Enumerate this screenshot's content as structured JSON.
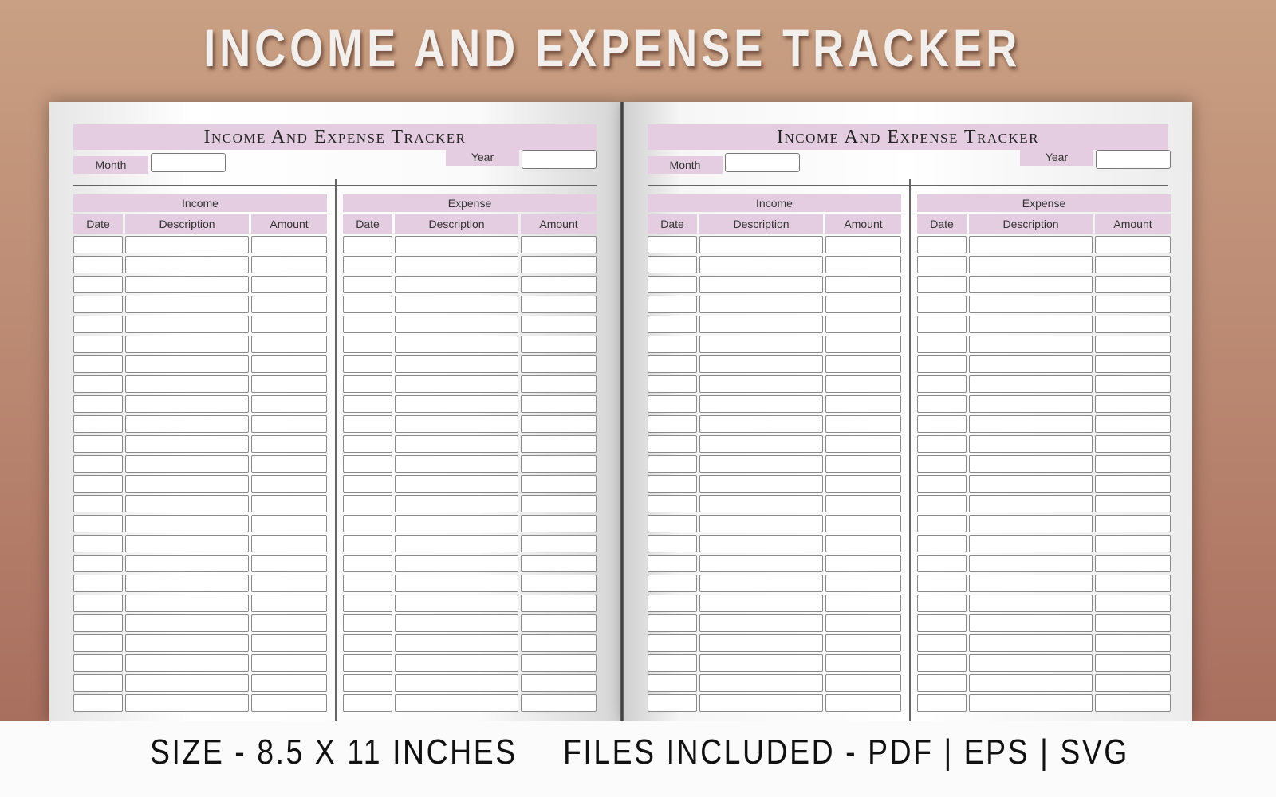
{
  "title": "INCOME AND EXPENSE TRACKER",
  "page": {
    "header": "Income And Expense Tracker",
    "month_label": "Month",
    "year_label": "Year",
    "sections": [
      {
        "title": "Income",
        "columns": [
          "Date",
          "Description",
          "Amount"
        ]
      },
      {
        "title": "Expense",
        "columns": [
          "Date",
          "Description",
          "Amount"
        ]
      }
    ],
    "row_count": 24
  },
  "footer": {
    "size": "SIZE - 8.5 X 11 INCHES",
    "files": "FILES INCLUDED - PDF | EPS | SVG"
  },
  "colors": {
    "accent": "#e4cde0"
  }
}
